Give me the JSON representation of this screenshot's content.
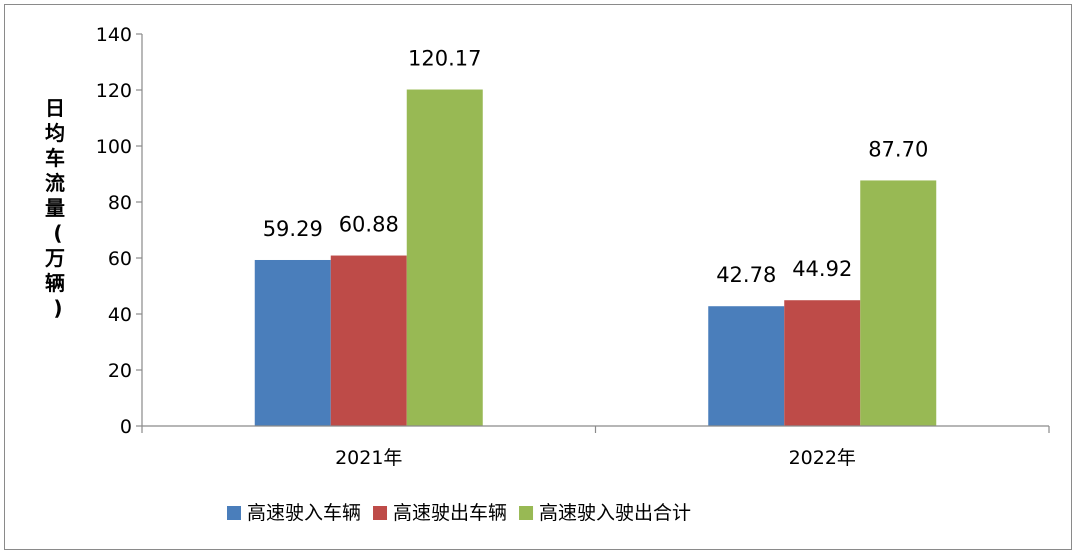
{
  "chart_data": {
    "type": "bar",
    "title": "",
    "xlabel": "",
    "ylabel": "日均车流量（万辆）",
    "categories": [
      "2021年",
      "2022年"
    ],
    "series": [
      {
        "name": "高速驶入车辆",
        "values": [
          59.29,
          42.78
        ],
        "labels": [
          "59.29",
          "42.78"
        ],
        "color": "#4a7ebb"
      },
      {
        "name": "高速驶出车辆",
        "values": [
          60.88,
          44.92
        ],
        "labels": [
          "60.88",
          "44.92"
        ],
        "color": "#be4b48"
      },
      {
        "name": "高速驶入驶出合计",
        "values": [
          120.17,
          87.7
        ],
        "labels": [
          "120.17",
          "87.70"
        ],
        "color": "#98b954"
      }
    ],
    "ylim": [
      0,
      140
    ],
    "yticks": [
      0,
      20,
      40,
      60,
      80,
      100,
      120,
      140
    ],
    "grid": false,
    "legend_position": "bottom"
  }
}
